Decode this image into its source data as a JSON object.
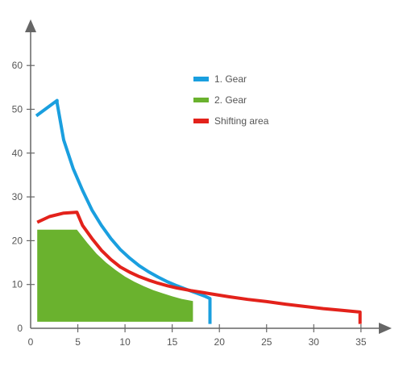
{
  "chart_data": {
    "type": "area",
    "xlim": [
      0,
      35
    ],
    "ylim": [
      0,
      60
    ],
    "x_ticks": [
      0,
      5,
      10,
      15,
      20,
      25,
      30,
      35
    ],
    "y_ticks": [
      0,
      10,
      20,
      30,
      40,
      50,
      60
    ],
    "grid": false,
    "legend_position": "top-right",
    "legend": [
      {
        "label": "1. Gear",
        "color": "#1a9fdf"
      },
      {
        "label": "2. Gear",
        "color": "#6ab22e"
      },
      {
        "label": "Shifting area",
        "color": "#e3221b"
      }
    ],
    "series": [
      {
        "name": "1. Gear",
        "kind": "line",
        "color": "#1a9fdf",
        "points": [
          [
            0.6,
            48.5
          ],
          [
            2.8,
            52
          ],
          [
            2.8,
            51.5
          ],
          [
            3.5,
            43
          ],
          [
            4.5,
            36.5
          ],
          [
            5.5,
            31.5
          ],
          [
            6.5,
            27
          ],
          [
            7.5,
            23.5
          ],
          [
            8.5,
            20.5
          ],
          [
            9.5,
            18
          ],
          [
            10.5,
            16
          ],
          [
            11.5,
            14.3
          ],
          [
            12.5,
            12.9
          ],
          [
            13.5,
            11.7
          ],
          [
            14.5,
            10.6
          ],
          [
            15.5,
            9.7
          ],
          [
            16.5,
            8.9
          ],
          [
            17.5,
            8.1
          ],
          [
            18.5,
            7.3
          ],
          [
            19.0,
            6.8
          ],
          [
            19.0,
            1.0
          ]
        ]
      },
      {
        "name": "2. Gear",
        "kind": "area",
        "color": "#6ab22e",
        "points": [
          [
            0.7,
            22.5
          ],
          [
            4.9,
            22.5
          ],
          [
            6.0,
            19.5
          ],
          [
            7.0,
            17.0
          ],
          [
            8.0,
            15.0
          ],
          [
            9.0,
            13.3
          ],
          [
            10.0,
            11.8
          ],
          [
            11.0,
            10.6
          ],
          [
            12.0,
            9.6
          ],
          [
            13.0,
            8.7
          ],
          [
            14.0,
            8.0
          ],
          [
            15.0,
            7.3
          ],
          [
            16.0,
            6.7
          ],
          [
            17.2,
            6.2
          ],
          [
            17.2,
            1.5
          ],
          [
            0.7,
            1.5
          ]
        ]
      },
      {
        "name": "Shifting area",
        "kind": "line",
        "color": "#e3221b",
        "points": [
          [
            0.7,
            24.2
          ],
          [
            2.0,
            25.5
          ],
          [
            3.5,
            26.3
          ],
          [
            4.9,
            26.5
          ],
          [
            5.5,
            23.5
          ],
          [
            6.5,
            20.5
          ],
          [
            7.5,
            17.8
          ],
          [
            8.5,
            15.7
          ],
          [
            9.5,
            14.0
          ],
          [
            10.5,
            12.8
          ],
          [
            11.5,
            11.8
          ],
          [
            12.5,
            11.0
          ],
          [
            13.5,
            10.3
          ],
          [
            14.5,
            9.7
          ],
          [
            15.5,
            9.2
          ],
          [
            17.0,
            8.6
          ],
          [
            19.0,
            7.9
          ],
          [
            21.0,
            7.2
          ],
          [
            23.0,
            6.6
          ],
          [
            25.0,
            6.1
          ],
          [
            27.0,
            5.5
          ],
          [
            29.0,
            5.0
          ],
          [
            31.0,
            4.5
          ],
          [
            33.0,
            4.1
          ],
          [
            34.9,
            3.7
          ],
          [
            34.9,
            1.0
          ]
        ]
      }
    ]
  }
}
